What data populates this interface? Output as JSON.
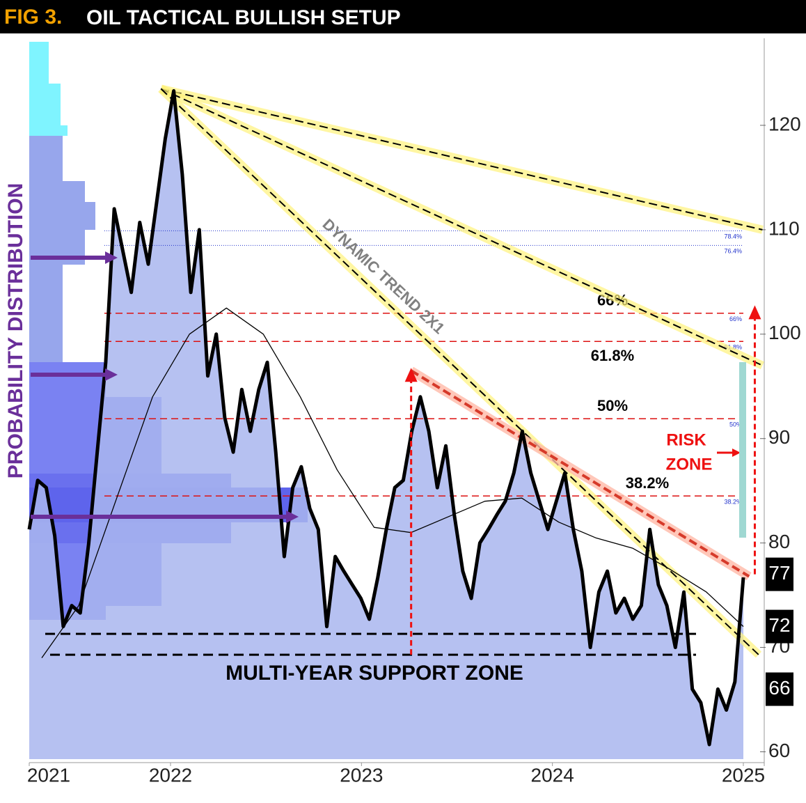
{
  "chart_data": {
    "type": "line",
    "title_prefix": "FIG 3.",
    "title": "OIL TACTICAL BULLISH SETUP",
    "xlim": [
      2021.26,
      2025.0
    ],
    "xticks": [
      2021,
      2022,
      2023,
      2024,
      2025
    ],
    "ylim": [
      59.3,
      128
    ],
    "yticks": [
      60,
      70,
      80,
      90,
      100,
      110,
      120
    ],
    "series": [
      {
        "name": "Price",
        "color": "#000000",
        "width": 5,
        "values": [
          81.3,
          86,
          85.3,
          80.7,
          72,
          74,
          73.3,
          80,
          88.7,
          97.3,
          112,
          108,
          104,
          110.7,
          106.7,
          112.7,
          118.7,
          123.3,
          115.3,
          104,
          110,
          96,
          100,
          92,
          88.7,
          94.7,
          90.7,
          94.7,
          97.3,
          88.7,
          78.7,
          85.3,
          87.3,
          83.3,
          81.3,
          72,
          78.7,
          77.3,
          76,
          74.7,
          72.7,
          76.7,
          81.3,
          85.3,
          86,
          90.7,
          94,
          90.7,
          85.3,
          89.3,
          82.7,
          77.3,
          74.7,
          80,
          81.3,
          82.7,
          84,
          86.7,
          90.7,
          86.7,
          84,
          81.3,
          84,
          86.7,
          81.3,
          77.3,
          70,
          75.3,
          77.3,
          73.3,
          74.7,
          72.7,
          74,
          81.3,
          76,
          74,
          70,
          75.3,
          66,
          64.7,
          60.7,
          66,
          64,
          66.7,
          76.7
        ]
      },
      {
        "name": "Moving average",
        "color": "#000000",
        "width": 1.3,
        "values": [
          69,
          74,
          84,
          94,
          100,
          102.5,
          100,
          94,
          87,
          81.5,
          81,
          82.5,
          84,
          84.3,
          82,
          80.5,
          79.5,
          77.5,
          75.3,
          72
        ]
      }
    ],
    "levels": [
      {
        "label": "78.4%",
        "value": 109.9,
        "color": "#2233cc",
        "style": "dotted"
      },
      {
        "label": "76.4%",
        "value": 108.5,
        "color": "#2233cc",
        "style": "dotted"
      },
      {
        "label": "66%",
        "value": 102,
        "color": "#dd1111",
        "style": "dashed"
      },
      {
        "label": "61.8%",
        "value": 99.3,
        "color": "#dd1111",
        "style": "dashed"
      },
      {
        "label": "50%",
        "value": 91.9,
        "color": "#dd1111",
        "style": "dashed"
      },
      {
        "label": "38.2%",
        "value": 84.5,
        "color": "#dd1111",
        "style": "dashed"
      }
    ],
    "support_levels": [
      71.3,
      69.3
    ],
    "support_label": "MULTI-YEAR SUPPORT ZONE",
    "trendlines": [
      {
        "from": [
          2021.95,
          123.5
        ],
        "to": [
          2025.1,
          110
        ]
      },
      {
        "from": [
          2021.95,
          123.5
        ],
        "to": [
          2025.1,
          97
        ]
      },
      {
        "from": [
          2021.95,
          123.5
        ],
        "to": [
          2025.08,
          69.3
        ]
      }
    ],
    "trend_label": "DYNAMIC TREND 2X1",
    "resistance": {
      "from": [
        2023.26,
        96.5
      ],
      "to": [
        2025.03,
        76.8
      ]
    },
    "arrows": [
      {
        "x": 2023.26,
        "from": 69.3,
        "to": 96.5
      },
      {
        "x": 2025.06,
        "from": 77,
        "to": 102.5
      }
    ],
    "price_tags": [
      77,
      72,
      66
    ],
    "side_label": "PROBABILITY DISTRIBUTION",
    "risk_label": [
      "RISK",
      "ZONE"
    ]
  }
}
